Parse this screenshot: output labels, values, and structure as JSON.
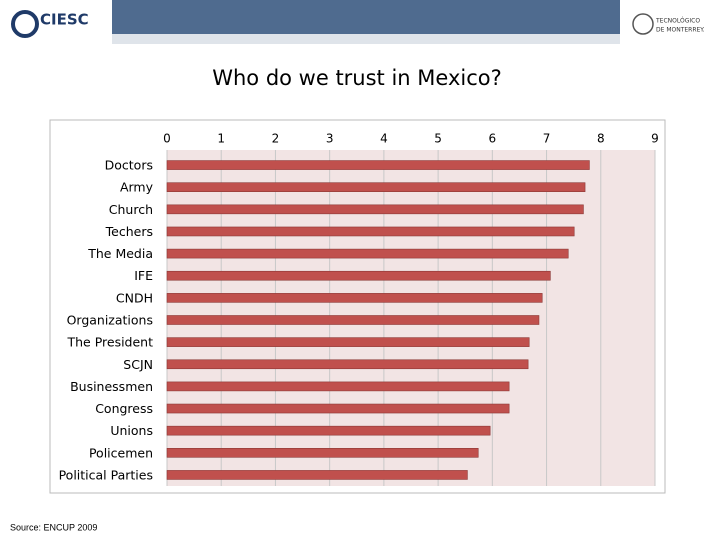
{
  "header": {
    "left_logo": "CIESC",
    "right_logo_line1": "TECNOLÓGICO",
    "right_logo_line2": "DE MONTERREY."
  },
  "chart_data": {
    "type": "hbar",
    "title": "Who do we trust in Mexico?",
    "categories": [
      "Doctors",
      "Army",
      "Church",
      "Techers",
      "The Media",
      "IFE",
      "CNDH",
      "Organizations",
      "The President",
      "SCJN",
      "Businessmen",
      "Congress",
      "Unions",
      "Policemen",
      "Political Parties"
    ],
    "values": [
      7.79,
      7.71,
      7.68,
      7.51,
      7.4,
      7.07,
      6.92,
      6.86,
      6.68,
      6.66,
      6.31,
      6.31,
      5.96,
      5.74,
      5.54
    ],
    "color": "#c0504d",
    "xlim": [
      0,
      9
    ],
    "xticks": [
      0,
      1,
      2,
      3,
      4,
      5,
      6,
      7,
      8,
      9
    ],
    "grid": true
  },
  "footer": {
    "source": "Source: ENCUP 2009"
  }
}
